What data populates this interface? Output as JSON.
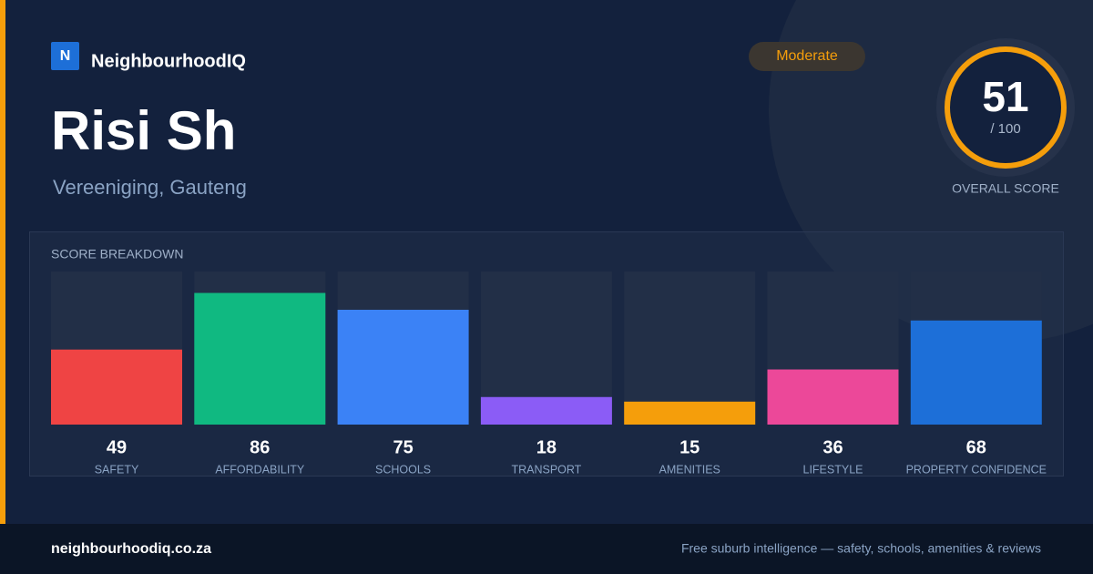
{
  "brand": "NeighbourhoodIQ",
  "brand_icon": "N",
  "badge": "Moderate",
  "title": "Risi Sh",
  "location": "Vereeniging, Gauteng",
  "score": {
    "value": 51,
    "max_label": "/ 100",
    "label": "OVERALL SCORE"
  },
  "chart_data": {
    "type": "bar",
    "title": "SCORE BREAKDOWN",
    "categories": [
      "SAFETY",
      "AFFORDABILITY",
      "SCHOOLS",
      "TRANSPORT",
      "AMENITIES",
      "LIFESTYLE",
      "PROPERTY CONFIDENCE"
    ],
    "values": [
      49,
      86,
      75,
      18,
      15,
      36,
      68
    ],
    "colors": [
      "#ef4444",
      "#10b981",
      "#3b82f6",
      "#8b5cf6",
      "#f59e0b",
      "#ec4899",
      "#1d6fd8"
    ],
    "ylim": [
      0,
      100
    ]
  },
  "footer": {
    "url": "neighbourhoodiq.co.za",
    "tagline": "Free suburb intelligence — safety, schools, amenities & reviews"
  }
}
